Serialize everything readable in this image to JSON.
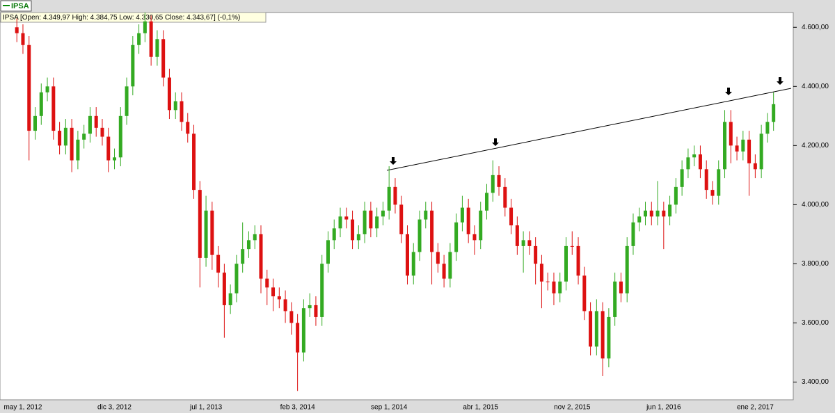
{
  "chart_data": {
    "type": "candlestick",
    "title": "IPSA",
    "subtitle": "IPSA [Open: 4.349,97  High: 4.384,75  Low: 4.330,65  Close: 4.343,67] (-0,1%)",
    "up_color": "#33aa22",
    "down_color": "#dd1111",
    "ylim": [
      3340,
      4650
    ],
    "yticks": [
      {
        "value": 3400,
        "label": "3.400,00"
      },
      {
        "value": 3600,
        "label": "3.600,00"
      },
      {
        "value": 3800,
        "label": "3.800,00"
      },
      {
        "value": 4000,
        "label": "4.000,00"
      },
      {
        "value": 4200,
        "label": "4.200,00"
      },
      {
        "value": 4400,
        "label": "4.400,00"
      },
      {
        "value": 4600,
        "label": "4.600,00"
      }
    ],
    "categories": [
      null,
      "may 1, 2012",
      null,
      null,
      null,
      null,
      null,
      null,
      null,
      null,
      null,
      null,
      null,
      null,
      null,
      null,
      "dic 3, 2012",
      null,
      null,
      null,
      null,
      null,
      null,
      null,
      null,
      null,
      null,
      null,
      null,
      null,
      null,
      "jul 1, 2013",
      null,
      null,
      null,
      null,
      null,
      null,
      null,
      null,
      null,
      null,
      null,
      null,
      null,
      null,
      "feb 3, 2014",
      null,
      null,
      null,
      null,
      null,
      null,
      null,
      null,
      null,
      null,
      null,
      null,
      null,
      null,
      "sep 1, 2014",
      null,
      null,
      null,
      null,
      null,
      null,
      null,
      null,
      null,
      null,
      null,
      null,
      null,
      null,
      "abr 1, 2015",
      null,
      null,
      null,
      null,
      null,
      null,
      null,
      null,
      null,
      null,
      null,
      null,
      null,
      null,
      "nov 2, 2015",
      null,
      null,
      null,
      null,
      null,
      null,
      null,
      null,
      null,
      null,
      null,
      null,
      null,
      null,
      "jun 1, 2016",
      null,
      null,
      null,
      null,
      null,
      null,
      null,
      null,
      null,
      null,
      null,
      null,
      null,
      null,
      "ene 2, 2017",
      null,
      null,
      null
    ],
    "open": [
      4600,
      4580,
      4540,
      4250,
      4300,
      4380,
      4400,
      4250,
      4200,
      4260,
      4150,
      4220,
      4240,
      4300,
      4260,
      4230,
      4150,
      4160,
      4300,
      4400,
      4540,
      4580,
      4620,
      4500,
      4560,
      4430,
      4320,
      4350,
      4280,
      4240,
      4050,
      3820,
      3980,
      3830,
      3770,
      3660,
      3700,
      3800,
      3850,
      3880,
      3900,
      3750,
      3720,
      3690,
      3680,
      3640,
      3600,
      3500,
      3650,
      3660,
      3620,
      3800,
      3880,
      3920,
      3960,
      3950,
      3880,
      3900,
      3980,
      3920,
      3960,
      3980,
      4060,
      4000,
      3900,
      3760,
      3840,
      3950,
      3980,
      3840,
      3800,
      3750,
      3840,
      3940,
      3990,
      3900,
      3880,
      3980,
      4040,
      4100,
      4060,
      3990,
      3930,
      3860,
      3880,
      3860,
      3800,
      3740,
      3740,
      3700,
      3740,
      3860,
      3860,
      3760,
      3640,
      3520,
      3640,
      3480,
      3620,
      3740,
      3700,
      3860,
      3940,
      3960,
      3980,
      3960,
      3980,
      3960,
      4000,
      4060,
      4120,
      4160,
      4170,
      4120,
      4050,
      4030,
      4120,
      4280,
      4200,
      4180,
      4220,
      4140,
      4120,
      4240,
      4280
    ],
    "high": [
      4630,
      4610,
      4570,
      4330,
      4410,
      4430,
      4430,
      4280,
      4290,
      4290,
      4250,
      4270,
      4330,
      4330,
      4290,
      4260,
      4190,
      4330,
      4430,
      4570,
      4610,
      4650,
      4640,
      4590,
      4590,
      4460,
      4380,
      4380,
      4310,
      4270,
      4080,
      4030,
      4010,
      3860,
      3800,
      3730,
      3830,
      3940,
      3910,
      3930,
      3930,
      3780,
      3750,
      3720,
      3710,
      3670,
      3630,
      3680,
      3700,
      3690,
      3830,
      3910,
      3950,
      3990,
      3990,
      3980,
      3930,
      4010,
      4010,
      3990,
      4010,
      4130,
      4090,
      4030,
      3930,
      3870,
      3980,
      4010,
      4010,
      3870,
      3830,
      3870,
      3970,
      4030,
      4020,
      3930,
      4010,
      4070,
      4150,
      4130,
      4090,
      4020,
      3960,
      3910,
      3910,
      3890,
      3830,
      3770,
      3770,
      3770,
      3890,
      3910,
      3890,
      3790,
      3670,
      3680,
      3670,
      3650,
      3770,
      3770,
      3890,
      3970,
      3990,
      4010,
      4010,
      4080,
      4010,
      4030,
      4090,
      4150,
      4190,
      4200,
      4200,
      4150,
      4080,
      4150,
      4320,
      4320,
      4230,
      4250,
      4250,
      4170,
      4270,
      4310,
      4380
    ],
    "low": [
      4550,
      4510,
      4150,
      4220,
      4270,
      4350,
      4220,
      4170,
      4170,
      4110,
      4120,
      4190,
      4210,
      4230,
      4200,
      4110,
      4120,
      4130,
      4270,
      4370,
      4510,
      4550,
      4470,
      4470,
      4400,
      4290,
      4290,
      4250,
      4210,
      4020,
      3720,
      3790,
      3780,
      3720,
      3550,
      3630,
      3670,
      3770,
      3820,
      3850,
      3700,
      3660,
      3640,
      3650,
      3600,
      3560,
      3370,
      3470,
      3620,
      3590,
      3590,
      3770,
      3850,
      3890,
      3920,
      3850,
      3850,
      3870,
      3890,
      3890,
      3930,
      3950,
      3970,
      3870,
      3730,
      3730,
      3810,
      3920,
      3730,
      3770,
      3720,
      3720,
      3810,
      3910,
      3870,
      3830,
      3850,
      3950,
      4010,
      4030,
      3960,
      3900,
      3830,
      3770,
      3830,
      3730,
      3650,
      3710,
      3660,
      3670,
      3710,
      3830,
      3730,
      3610,
      3490,
      3490,
      3420,
      3450,
      3590,
      3670,
      3670,
      3830,
      3910,
      3930,
      3930,
      3930,
      3850,
      3930,
      3970,
      4030,
      4090,
      4130,
      4090,
      4020,
      4000,
      4000,
      4090,
      4140,
      4150,
      4150,
      4030,
      4090,
      4090,
      4210,
      4250
    ],
    "close": [
      4580,
      4540,
      4250,
      4300,
      4380,
      4400,
      4250,
      4200,
      4260,
      4150,
      4220,
      4240,
      4300,
      4260,
      4230,
      4150,
      4160,
      4300,
      4400,
      4540,
      4580,
      4620,
      4500,
      4560,
      4430,
      4320,
      4350,
      4280,
      4240,
      4050,
      3820,
      3980,
      3830,
      3770,
      3660,
      3700,
      3800,
      3850,
      3880,
      3900,
      3750,
      3720,
      3690,
      3680,
      3640,
      3600,
      3500,
      3650,
      3660,
      3620,
      3800,
      3880,
      3920,
      3960,
      3950,
      3880,
      3900,
      3980,
      3920,
      3960,
      3980,
      4060,
      4000,
      3900,
      3760,
      3840,
      3950,
      3980,
      3840,
      3800,
      3750,
      3840,
      3940,
      3990,
      3900,
      3880,
      3980,
      4040,
      4100,
      4060,
      3990,
      3930,
      3860,
      3880,
      3860,
      3800,
      3740,
      3740,
      3700,
      3740,
      3860,
      3860,
      3760,
      3640,
      3520,
      3640,
      3480,
      3620,
      3740,
      3700,
      3860,
      3940,
      3960,
      3980,
      3960,
      3980,
      3960,
      4000,
      4060,
      4120,
      4160,
      4170,
      4120,
      4050,
      4030,
      4120,
      4280,
      4200,
      4180,
      4220,
      4140,
      4120,
      4240,
      4280,
      4340
    ]
  }
}
